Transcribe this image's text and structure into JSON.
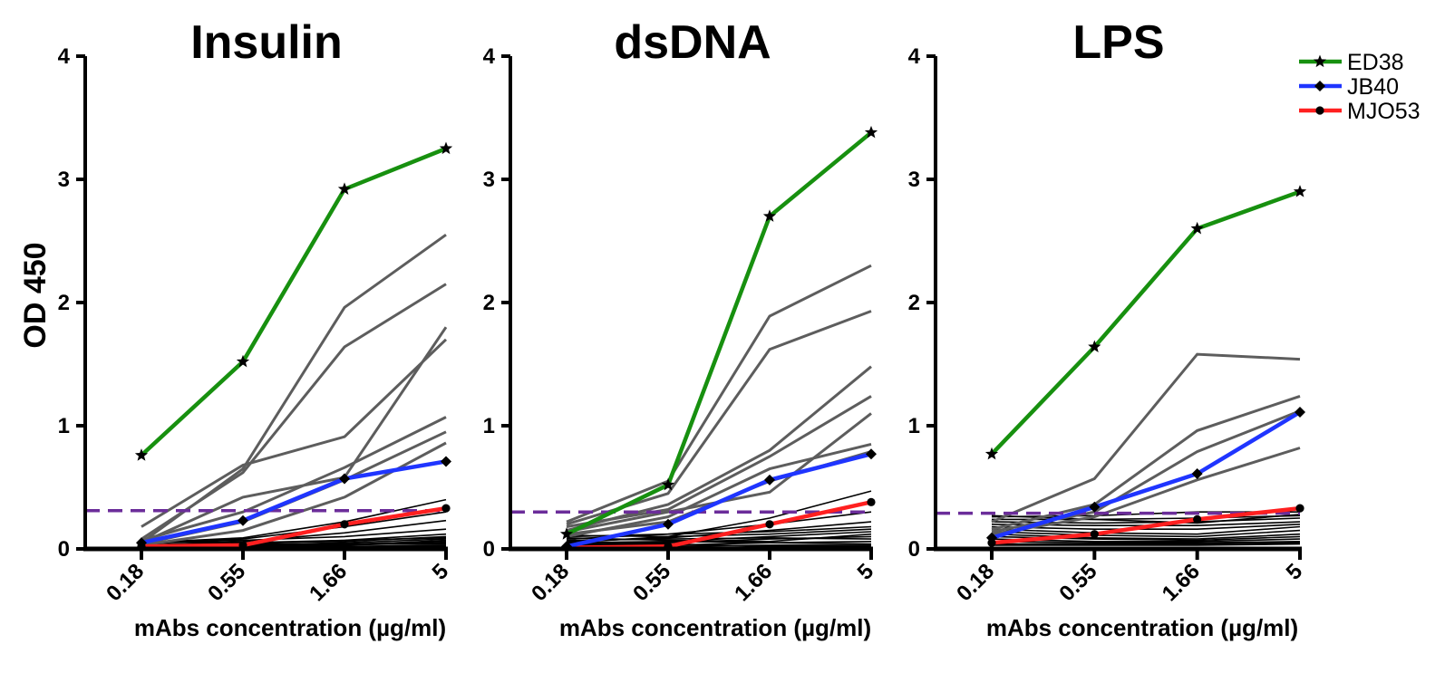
{
  "colors": {
    "ED38": "#17900f",
    "JB40": "#1f35ff",
    "MJO53": "#ff2020",
    "cutoff": "#6b2d9a",
    "high_binders": "#5d5d5d",
    "low_binders": "#000000"
  },
  "legend": {
    "placement": "top-right",
    "items": [
      {
        "label": "ED38",
        "marker": "star"
      },
      {
        "label": "JB40",
        "marker": "diamond"
      },
      {
        "label": "MJO53",
        "marker": "circle"
      }
    ]
  },
  "chart_data": [
    {
      "type": "line",
      "title": "Insulin",
      "xlabel": "mAbs concentration (µg/ml)",
      "ylabel": "OD 450",
      "categories": [
        "0.18",
        "0.55",
        "1.66",
        "5"
      ],
      "yticks": [
        "0",
        "1",
        "2",
        "3",
        "4"
      ],
      "ylim": [
        0,
        4
      ],
      "grid": false,
      "cutoff": 0.31,
      "highlighted_series": [
        {
          "name": "ED38",
          "values": [
            0.76,
            1.52,
            2.92,
            3.25
          ]
        },
        {
          "name": "JB40",
          "values": [
            0.05,
            0.23,
            0.57,
            0.71
          ]
        },
        {
          "name": "MJO53",
          "values": [
            0.02,
            0.03,
            0.2,
            0.33
          ]
        }
      ],
      "other_series_high": [
        [
          0.05,
          0.65,
          1.96,
          2.55
        ],
        [
          0.08,
          0.62,
          1.64,
          2.15
        ],
        [
          0.05,
          0.42,
          0.58,
          1.8
        ],
        [
          0.18,
          0.68,
          0.91,
          1.7
        ],
        [
          0.07,
          0.3,
          0.66,
          1.07
        ],
        [
          0.04,
          0.22,
          0.56,
          0.95
        ],
        [
          0.03,
          0.15,
          0.42,
          0.86
        ]
      ],
      "other_series_low": [
        [
          0.05,
          0.09,
          0.22,
          0.4
        ],
        [
          0.04,
          0.08,
          0.18,
          0.3
        ],
        [
          0.03,
          0.06,
          0.13,
          0.23
        ],
        [
          0.05,
          0.07,
          0.1,
          0.16
        ],
        [
          0.02,
          0.04,
          0.07,
          0.12
        ],
        [
          0.03,
          0.05,
          0.06,
          0.1
        ],
        [
          0.02,
          0.03,
          0.05,
          0.08
        ],
        [
          0.01,
          0.02,
          0.04,
          0.06
        ],
        [
          0.02,
          0.03,
          0.03,
          0.05
        ],
        [
          0.01,
          0.01,
          0.02,
          0.03
        ],
        [
          0.03,
          0.04,
          0.04,
          0.04
        ],
        [
          0.0,
          0.01,
          0.02,
          0.02
        ],
        [
          0.06,
          0.05,
          0.07,
          0.09
        ],
        [
          0.01,
          0.02,
          0.03,
          0.07
        ]
      ]
    },
    {
      "type": "line",
      "title": "dsDNA",
      "xlabel": "mAbs concentration (µg/ml)",
      "ylabel": "",
      "categories": [
        "0.18",
        "0.55",
        "1.66",
        "5"
      ],
      "yticks": [
        "0",
        "1",
        "2",
        "3",
        "4"
      ],
      "ylim": [
        0,
        4
      ],
      "grid": false,
      "cutoff": 0.3,
      "highlighted_series": [
        {
          "name": "ED38",
          "values": [
            0.12,
            0.52,
            2.7,
            3.38
          ]
        },
        {
          "name": "JB40",
          "values": [
            0.02,
            0.2,
            0.56,
            0.77
          ]
        },
        {
          "name": "MJO53",
          "values": [
            0.01,
            0.02,
            0.2,
            0.38
          ]
        }
      ],
      "other_series_high": [
        [
          0.22,
          0.55,
          1.89,
          2.3
        ],
        [
          0.2,
          0.45,
          1.62,
          1.93
        ],
        [
          0.15,
          0.36,
          0.8,
          1.48
        ],
        [
          0.18,
          0.32,
          0.75,
          1.24
        ],
        [
          0.14,
          0.3,
          0.46,
          1.1
        ],
        [
          0.1,
          0.26,
          0.65,
          0.85
        ],
        [
          0.12,
          0.22,
          0.55,
          0.79
        ]
      ],
      "other_series_low": [
        [
          0.05,
          0.1,
          0.25,
          0.47
        ],
        [
          0.08,
          0.12,
          0.2,
          0.3
        ],
        [
          0.06,
          0.09,
          0.15,
          0.22
        ],
        [
          0.1,
          0.12,
          0.14,
          0.18
        ],
        [
          0.04,
          0.06,
          0.1,
          0.14
        ],
        [
          0.03,
          0.05,
          0.08,
          0.1
        ],
        [
          0.07,
          0.08,
          0.09,
          0.08
        ],
        [
          0.02,
          0.03,
          0.05,
          0.06
        ],
        [
          0.05,
          0.06,
          0.05,
          0.04
        ],
        [
          0.01,
          0.02,
          0.03,
          0.03
        ],
        [
          0.09,
          0.07,
          0.06,
          0.12
        ],
        [
          0.03,
          0.04,
          0.02,
          0.02
        ],
        [
          0.11,
          0.1,
          0.12,
          0.16
        ],
        [
          0.0,
          0.01,
          0.01,
          0.01
        ]
      ]
    },
    {
      "type": "line",
      "title": "LPS",
      "xlabel": "mAbs concentration (µg/ml)",
      "ylabel": "",
      "categories": [
        "0.18",
        "0.55",
        "1.66",
        "5"
      ],
      "yticks": [
        "0",
        "1",
        "2",
        "3",
        "4"
      ],
      "ylim": [
        0,
        4
      ],
      "grid": false,
      "cutoff": 0.29,
      "highlighted_series": [
        {
          "name": "ED38",
          "values": [
            0.77,
            1.64,
            2.6,
            2.9
          ]
        },
        {
          "name": "JB40",
          "values": [
            0.09,
            0.34,
            0.61,
            1.11
          ]
        },
        {
          "name": "MJO53",
          "values": [
            0.05,
            0.12,
            0.24,
            0.33
          ]
        }
      ],
      "other_series_high": [
        [
          0.22,
          0.57,
          1.58,
          1.54
        ],
        [
          0.16,
          0.36,
          0.96,
          1.24
        ],
        [
          0.14,
          0.3,
          0.79,
          1.12
        ],
        [
          0.12,
          0.26,
          0.56,
          0.82
        ]
      ],
      "other_series_low": [
        [
          0.26,
          0.27,
          0.3,
          0.3
        ],
        [
          0.24,
          0.24,
          0.25,
          0.27
        ],
        [
          0.22,
          0.21,
          0.22,
          0.25
        ],
        [
          0.2,
          0.19,
          0.19,
          0.22
        ],
        [
          0.18,
          0.16,
          0.16,
          0.2
        ],
        [
          0.16,
          0.13,
          0.12,
          0.18
        ],
        [
          0.14,
          0.11,
          0.1,
          0.15
        ],
        [
          0.12,
          0.09,
          0.08,
          0.12
        ],
        [
          0.1,
          0.08,
          0.07,
          0.1
        ],
        [
          0.08,
          0.06,
          0.06,
          0.08
        ],
        [
          0.06,
          0.05,
          0.05,
          0.06
        ],
        [
          0.04,
          0.04,
          0.04,
          0.05
        ],
        [
          0.03,
          0.03,
          0.03,
          0.04
        ],
        [
          0.27,
          0.24,
          0.21,
          0.28
        ]
      ]
    }
  ]
}
